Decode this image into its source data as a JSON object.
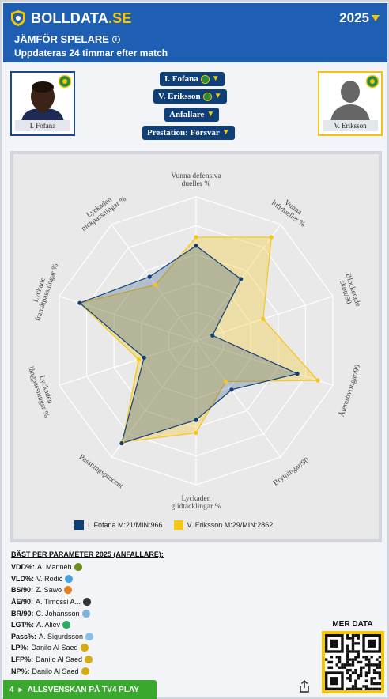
{
  "header": {
    "logo_main": "BOLLDATA",
    "logo_ext": ".SE",
    "year": "2025",
    "title": "JÄMFÖR SPELARE",
    "subtitle": "Uppdateras 24 timmar efter match"
  },
  "players": {
    "left_name": "I. Fofana",
    "right_name": "V. Eriksson"
  },
  "selectors": [
    {
      "label": "I. Fofana",
      "crest": true
    },
    {
      "label": "V. Eriksson",
      "crest": true
    },
    {
      "label": "Anfallare",
      "crest": false
    },
    {
      "label": "Prestation: Försvar",
      "crest": false
    }
  ],
  "chart_data": {
    "type": "radar",
    "axes": [
      "Vunna defensiva dueller %",
      "Vunna luftdueller %",
      "Blockerade skott/90",
      "Återerövringar/90",
      "Brytningar/90",
      "Lyckade glidtacklingar %",
      "Passningsprocent",
      "Lyckaden långpassningar %",
      "Lyckade framåtpassningar %",
      "Lyckaden nickpassningar %"
    ],
    "axis_label_lines": [
      [
        "Vunna defensiva",
        "dueller %"
      ],
      [
        "Vunna",
        "luftdueller %"
      ],
      [
        "Blockerade",
        "skott/90"
      ],
      [
        "Återerövringar/90"
      ],
      [
        "Brytningar/90"
      ],
      [
        "Lyckaden",
        "glidtacklingar %"
      ],
      [
        "Passningsprocent"
      ],
      [
        "Lyckaden",
        "långpassningar %"
      ],
      [
        "Lyckade",
        "framåtpassningar %"
      ],
      [
        "Lyckaden",
        "nickpassningar %"
      ]
    ],
    "range": [
      0,
      100
    ],
    "grid_levels": 5,
    "series": [
      {
        "name": "I. Fofana M:21/MIN:966",
        "color": "#0f3f78",
        "values": [
          66,
          53,
          12,
          74,
          42,
          55,
          88,
          38,
          85,
          55
        ]
      },
      {
        "name": "V. Eriksson M:29/MIN:2862",
        "color": "#f5c518",
        "values": [
          72,
          89,
          49,
          89,
          35,
          64,
          87,
          42,
          85,
          48
        ]
      }
    ],
    "legend_position": "bottom"
  },
  "best": {
    "title": "BÄST PER PARAMETER 2025 (ANFALLARE):",
    "rows": [
      {
        "k": "VDD%:",
        "v": "A. Manneh",
        "color": "#6b8e23"
      },
      {
        "k": "VLD%:",
        "v": "V. Rodić",
        "color": "#4aa3df"
      },
      {
        "k": "BS/90:",
        "v": "Z. Sawo",
        "color": "#e67e22"
      },
      {
        "k": "ÅE/90:",
        "v": "A. Timossi A...",
        "color": "#333333"
      },
      {
        "k": "BR/90:",
        "v": "C. Johansson",
        "color": "#7fb3d5"
      },
      {
        "k": "LGT%:",
        "v": "A. Aliev",
        "color": "#27ae60"
      },
      {
        "k": "Pass%:",
        "v": "A. Sigurdsson",
        "color": "#85c1e9"
      },
      {
        "k": "LP%:",
        "v": "Danilo Al Saed",
        "color": "#d4ac0d"
      },
      {
        "k": "LFP%:",
        "v": "Danilo Al Saed",
        "color": "#d4ac0d"
      },
      {
        "k": "NP%:",
        "v": "Danilo Al Saed",
        "color": "#d4ac0d"
      }
    ]
  },
  "more_data": "MER DATA",
  "footer": {
    "num": "4",
    "label": "ALLSVENSKAN PÅ TV4 PLAY"
  }
}
